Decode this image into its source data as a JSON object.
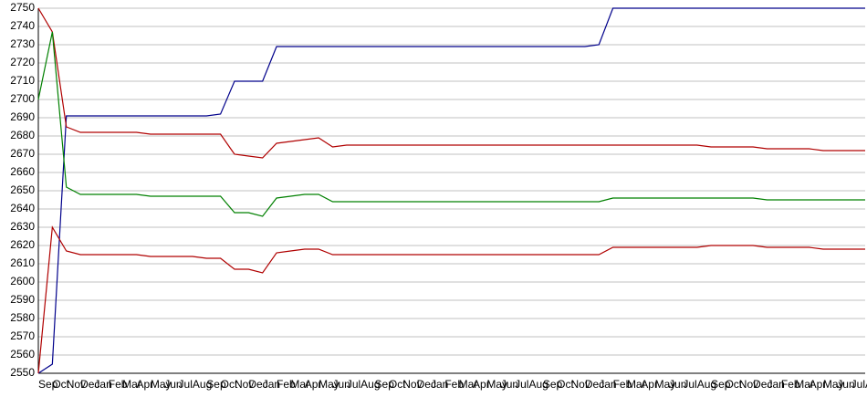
{
  "chart_data": {
    "type": "line",
    "categories": [
      "Sep",
      "Oct",
      "Nov",
      "Dec",
      "Jan",
      "Feb",
      "Mar",
      "Apr",
      "May",
      "Jun",
      "Jul",
      "Aug",
      "Sep",
      "Oct",
      "Nov",
      "Dec",
      "Jan",
      "Feb",
      "Mar",
      "Apr",
      "May",
      "Jun",
      "Jul",
      "Aug",
      "Sep",
      "Oct",
      "Nov",
      "Dec",
      "Jan",
      "Feb",
      "Mar",
      "Apr",
      "May",
      "Jun",
      "Jul",
      "Aug",
      "Sep",
      "Oct",
      "Nov",
      "Dec",
      "Jan",
      "Feb",
      "Mar",
      "Apr",
      "May",
      "Jun",
      "Jul",
      "Aug",
      "Sep",
      "Oct",
      "Nov",
      "Dec",
      "Jan",
      "Feb",
      "Mar",
      "Apr",
      "May",
      "Jun",
      "Jul",
      "Aug"
    ],
    "series": [
      {
        "color": "#00008b",
        "values": [
          2550,
          2555,
          2691,
          2691,
          2691,
          2691,
          2691,
          2691,
          2691,
          2691,
          2691,
          2691,
          2691,
          2692,
          2710,
          2710,
          2710,
          2729,
          2729,
          2729,
          2729,
          2729,
          2729,
          2729,
          2729,
          2729,
          2729,
          2729,
          2729,
          2729,
          2729,
          2729,
          2729,
          2729,
          2729,
          2729,
          2729,
          2729,
          2729,
          2729,
          2730,
          2750,
          2750,
          2750,
          2750,
          2750,
          2750,
          2750,
          2750,
          2750,
          2750,
          2750,
          2750,
          2750,
          2750,
          2750,
          2750,
          2750,
          2750,
          2750
        ]
      },
      {
        "color": "#b00000",
        "values": [
          2750,
          2737,
          2685,
          2682,
          2682,
          2682,
          2682,
          2682,
          2681,
          2681,
          2681,
          2681,
          2681,
          2681,
          2670,
          2669,
          2668,
          2676,
          2677,
          2678,
          2679,
          2674,
          2675,
          2675,
          2675,
          2675,
          2675,
          2675,
          2675,
          2675,
          2675,
          2675,
          2675,
          2675,
          2675,
          2675,
          2675,
          2675,
          2675,
          2675,
          2675,
          2675,
          2675,
          2675,
          2675,
          2675,
          2675,
          2675,
          2674,
          2674,
          2674,
          2674,
          2673,
          2673,
          2673,
          2673,
          2672,
          2672,
          2672,
          2672
        ]
      },
      {
        "color": "#008000",
        "values": [
          2700,
          2737,
          2652,
          2648,
          2648,
          2648,
          2648,
          2648,
          2647,
          2647,
          2647,
          2647,
          2647,
          2647,
          2638,
          2638,
          2636,
          2646,
          2647,
          2648,
          2648,
          2644,
          2644,
          2644,
          2644,
          2644,
          2644,
          2644,
          2644,
          2644,
          2644,
          2644,
          2644,
          2644,
          2644,
          2644,
          2644,
          2644,
          2644,
          2644,
          2644,
          2646,
          2646,
          2646,
          2646,
          2646,
          2646,
          2646,
          2646,
          2646,
          2646,
          2646,
          2645,
          2645,
          2645,
          2645,
          2645,
          2645,
          2645,
          2645
        ]
      },
      {
        "color": "#b00000",
        "values": [
          2550,
          2630,
          2617,
          2615,
          2615,
          2615,
          2615,
          2615,
          2614,
          2614,
          2614,
          2614,
          2613,
          2613,
          2607,
          2607,
          2605,
          2616,
          2617,
          2618,
          2618,
          2615,
          2615,
          2615,
          2615,
          2615,
          2615,
          2615,
          2615,
          2615,
          2615,
          2615,
          2615,
          2615,
          2615,
          2615,
          2615,
          2615,
          2615,
          2615,
          2615,
          2619,
          2619,
          2619,
          2619,
          2619,
          2619,
          2619,
          2620,
          2620,
          2620,
          2620,
          2619,
          2619,
          2619,
          2619,
          2618,
          2618,
          2618,
          2618
        ]
      }
    ],
    "ylim": [
      2550,
      2750
    ],
    "yticks": [
      2550,
      2560,
      2570,
      2580,
      2590,
      2600,
      2610,
      2620,
      2630,
      2640,
      2650,
      2660,
      2670,
      2680,
      2690,
      2700,
      2710,
      2720,
      2730,
      2740,
      2750
    ],
    "grid": true
  }
}
